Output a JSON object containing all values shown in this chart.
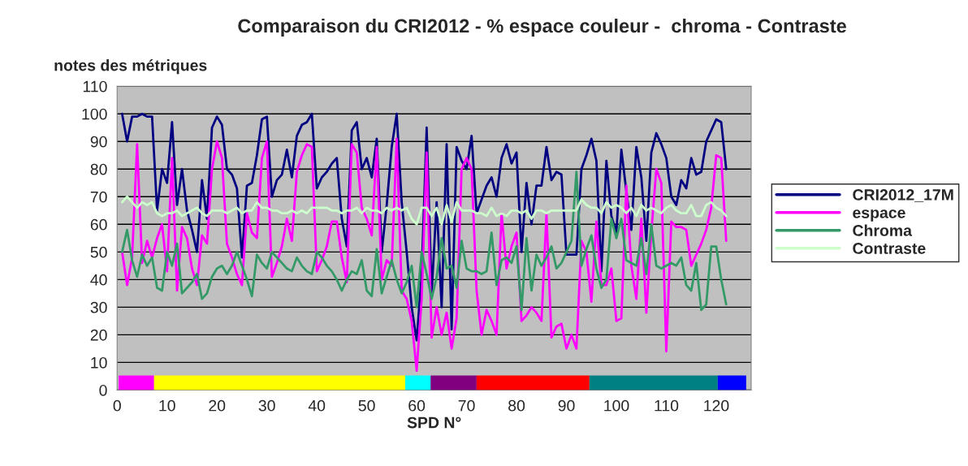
{
  "chart_data": {
    "type": "line",
    "title": "Comparaison du CRI2012 - % espace couleur -  chroma - Contraste",
    "ylabel": "notes des métriques",
    "xlabel": "SPD N°",
    "xlim": [
      0,
      127
    ],
    "xticks": [
      0,
      10,
      20,
      30,
      40,
      50,
      60,
      70,
      80,
      90,
      100,
      110,
      120
    ],
    "ylim": [
      0,
      110
    ],
    "yticks": [
      0,
      10,
      20,
      30,
      40,
      50,
      60,
      70,
      80,
      90,
      100,
      110
    ],
    "grid": "y",
    "legend": "right",
    "line_style": "solid",
    "marker": "none",
    "x": [
      1,
      2,
      3,
      4,
      5,
      6,
      7,
      8,
      9,
      10,
      11,
      12,
      13,
      14,
      15,
      16,
      17,
      18,
      19,
      20,
      21,
      22,
      23,
      24,
      25,
      26,
      27,
      28,
      29,
      30,
      31,
      32,
      33,
      34,
      35,
      36,
      37,
      38,
      39,
      40,
      41,
      42,
      43,
      44,
      45,
      46,
      47,
      48,
      49,
      50,
      51,
      52,
      53,
      54,
      55,
      56,
      57,
      58,
      59,
      60,
      61,
      62,
      63,
      64,
      65,
      66,
      67,
      68,
      69,
      70,
      71,
      72,
      73,
      74,
      75,
      76,
      77,
      78,
      79,
      80,
      81,
      82,
      83,
      84,
      85,
      86,
      87,
      88,
      89,
      90,
      91,
      92,
      93,
      94,
      95,
      96,
      97,
      98,
      99,
      100,
      101,
      102,
      103,
      104,
      105,
      106,
      107,
      108,
      109,
      110,
      111,
      112,
      113,
      114,
      115,
      116,
      117,
      118,
      119,
      120,
      121,
      122
    ],
    "series": [
      {
        "name": "CRI2012_17M",
        "color": "#000080",
        "values": [
          100,
          90,
          99,
          99,
          100,
          99,
          99,
          65,
          80,
          75,
          97,
          67,
          80,
          65,
          58,
          50,
          76,
          62,
          95,
          99,
          96,
          80,
          78,
          73,
          48,
          74,
          75,
          85,
          98,
          99,
          70,
          76,
          78,
          87,
          77,
          92,
          96,
          97,
          100,
          73,
          77,
          79,
          82,
          84,
          62,
          52,
          94,
          97,
          80,
          84,
          77,
          91,
          50,
          67,
          88,
          100,
          68,
          50,
          30,
          18,
          42,
          95,
          35,
          68,
          30,
          89,
          22,
          88,
          83,
          80,
          92,
          64,
          69,
          74,
          77,
          70,
          84,
          89,
          82,
          86,
          50,
          75,
          60,
          74,
          74,
          88,
          76,
          79,
          78,
          49,
          49,
          49,
          80,
          85,
          91,
          83,
          43,
          83,
          63,
          57,
          87,
          72,
          58,
          88,
          77,
          54,
          86,
          93,
          89,
          84,
          70,
          67,
          76,
          73,
          84,
          78,
          79,
          90,
          94,
          98,
          97,
          80
        ]
      },
      {
        "name": "espace",
        "color": "#ff00ff",
        "values": [
          50,
          38,
          48,
          89,
          46,
          54,
          48,
          55,
          60,
          43,
          84,
          36,
          59,
          55,
          44,
          38,
          56,
          53,
          80,
          90,
          84,
          53,
          48,
          42,
          38,
          64,
          57,
          55,
          84,
          90,
          41,
          46,
          52,
          62,
          54,
          79,
          85,
          89,
          88,
          43,
          47,
          52,
          61,
          61,
          48,
          39,
          89,
          86,
          66,
          62,
          56,
          88,
          40,
          47,
          45,
          91,
          36,
          33,
          25,
          7,
          33,
          86,
          19,
          30,
          20,
          28,
          15,
          26,
          80,
          84,
          80,
          36,
          20,
          29,
          25,
          20,
          64,
          44,
          52,
          57,
          25,
          27,
          30,
          28,
          25,
          64,
          19,
          23,
          24,
          15,
          20,
          15,
          54,
          50,
          32,
          61,
          38,
          38,
          44,
          25,
          26,
          74,
          45,
          33,
          62,
          28,
          57,
          80,
          75,
          14,
          61,
          59,
          59,
          58,
          45,
          49,
          53,
          58,
          66,
          85,
          84,
          54
        ]
      },
      {
        "name": "Chroma",
        "color": "#339966",
        "values": [
          50,
          58,
          47,
          41,
          49,
          45,
          48,
          37,
          36,
          50,
          45,
          53,
          35,
          37,
          39,
          42,
          33,
          35,
          41,
          44,
          45,
          42,
          45,
          50,
          45,
          40,
          34,
          49,
          46,
          44,
          50,
          48,
          46,
          44,
          43,
          48,
          45,
          43,
          42,
          50,
          48,
          45,
          43,
          40,
          36,
          40,
          43,
          42,
          47,
          36,
          34,
          51,
          35,
          41,
          47,
          40,
          35,
          39,
          45,
          30,
          50,
          42,
          33,
          41,
          55,
          44,
          45,
          37,
          54,
          44,
          43,
          43,
          42,
          43,
          57,
          38,
          47,
          48,
          46,
          52,
          29,
          55,
          36,
          49,
          45,
          48,
          52,
          44,
          46,
          50,
          54,
          79,
          45,
          51,
          56,
          44,
          37,
          40,
          62,
          55,
          62,
          47,
          46,
          45,
          55,
          42,
          60,
          45,
          44,
          45,
          46,
          45,
          48,
          38,
          36,
          46,
          29,
          31,
          52,
          52,
          40,
          31
        ]
      },
      {
        "name": "Contraste",
        "color": "#ccffcc",
        "values": [
          68,
          70,
          68,
          66,
          68,
          67,
          68,
          64,
          63,
          64,
          64,
          65,
          63,
          64,
          65,
          66,
          64,
          63,
          65,
          65,
          65,
          64,
          65,
          66,
          64,
          65,
          65,
          68,
          66,
          66,
          65,
          65,
          64,
          64,
          65,
          64,
          65,
          64,
          66,
          66,
          66,
          66,
          65,
          65,
          64,
          65,
          65,
          66,
          64,
          66,
          65,
          65,
          64,
          66,
          65,
          66,
          65,
          66,
          62,
          60,
          66,
          66,
          63,
          66,
          60,
          67,
          61,
          68,
          65,
          65,
          65,
          64,
          64,
          63,
          66,
          63,
          64,
          63,
          65,
          65,
          64,
          65,
          62,
          65,
          65,
          64,
          65,
          65,
          65,
          65,
          65,
          65,
          69,
          67,
          66,
          66,
          64,
          68,
          66,
          67,
          66,
          64,
          66,
          63,
          67,
          65,
          66,
          65,
          64,
          66,
          67,
          65,
          64,
          64,
          67,
          63,
          63,
          67,
          68,
          66,
          65,
          63
        ]
      }
    ],
    "bands": [
      {
        "axis": "x",
        "from": 0.3,
        "to": 7.4,
        "color": "#ff00ff"
      },
      {
        "axis": "x",
        "from": 7.4,
        "to": 57.7,
        "color": "#ffff00"
      },
      {
        "axis": "x",
        "from": 57.7,
        "to": 62.8,
        "color": "#00ffff"
      },
      {
        "axis": "x",
        "from": 62.8,
        "to": 72,
        "color": "#800080"
      },
      {
        "axis": "x",
        "from": 72,
        "to": 94.6,
        "color": "#ff0000"
      },
      {
        "axis": "x",
        "from": 94.6,
        "to": 120.3,
        "color": "#008080"
      },
      {
        "axis": "x",
        "from": 120.3,
        "to": 126,
        "color": "#0000ff"
      }
    ]
  }
}
